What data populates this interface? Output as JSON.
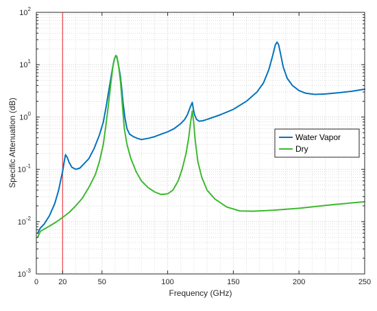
{
  "chart_data": {
    "type": "line",
    "title": "",
    "xlabel": "Frequency (GHz)",
    "ylabel": "Specific Attenuation (dB)",
    "xlim": [
      0,
      250
    ],
    "ylim": [
      0.001,
      100
    ],
    "yscale": "log",
    "grid": true,
    "legend_position": "right",
    "x_ticks": [
      "0",
      "50",
      "100",
      "150",
      "200",
      "250"
    ],
    "x_extra_tick": "20",
    "y_ticks": [
      {
        "base": "10",
        "exp": "-3",
        "value": 0.001
      },
      {
        "base": "10",
        "exp": "-2",
        "value": 0.01
      },
      {
        "base": "10",
        "exp": "-1",
        "value": 0.1
      },
      {
        "base": "10",
        "exp": "0",
        "value": 1
      },
      {
        "base": "10",
        "exp": "1",
        "value": 10
      },
      {
        "base": "10",
        "exp": "2",
        "value": 100
      }
    ],
    "vertical_line": {
      "x": 20,
      "color": "#e8202a"
    },
    "series": [
      {
        "name": "Water Vapor",
        "color": "#0072bd",
        "points": [
          [
            1,
            0.006
          ],
          [
            3,
            0.0075
          ],
          [
            6,
            0.009
          ],
          [
            10,
            0.013
          ],
          [
            14,
            0.022
          ],
          [
            17,
            0.04
          ],
          [
            19,
            0.07
          ],
          [
            20,
            0.09
          ],
          [
            21,
            0.13
          ],
          [
            22.2,
            0.19
          ],
          [
            23.5,
            0.17
          ],
          [
            25,
            0.135
          ],
          [
            27,
            0.11
          ],
          [
            30,
            0.1
          ],
          [
            33,
            0.105
          ],
          [
            36,
            0.125
          ],
          [
            40,
            0.16
          ],
          [
            44,
            0.25
          ],
          [
            48,
            0.45
          ],
          [
            51,
            0.8
          ],
          [
            53,
            1.5
          ],
          [
            55,
            3
          ],
          [
            57,
            6
          ],
          [
            58.5,
            10
          ],
          [
            59.5,
            13
          ],
          [
            60.5,
            14.5
          ],
          [
            61.3,
            14
          ],
          [
            62.5,
            10
          ],
          [
            64,
            6
          ],
          [
            65,
            3.5
          ],
          [
            66,
            1.9
          ],
          [
            67.5,
            0.95
          ],
          [
            69,
            0.6
          ],
          [
            71,
            0.47
          ],
          [
            74,
            0.42
          ],
          [
            77,
            0.39
          ],
          [
            80,
            0.37
          ],
          [
            85,
            0.39
          ],
          [
            90,
            0.42
          ],
          [
            95,
            0.47
          ],
          [
            100,
            0.52
          ],
          [
            105,
            0.6
          ],
          [
            110,
            0.75
          ],
          [
            113,
            0.9
          ],
          [
            115,
            1.1
          ],
          [
            117,
            1.5
          ],
          [
            118.75,
            1.9
          ],
          [
            119.6,
            1.4
          ],
          [
            120.5,
            1.1
          ],
          [
            122,
            0.9
          ],
          [
            124,
            0.83
          ],
          [
            127,
            0.85
          ],
          [
            130,
            0.9
          ],
          [
            140,
            1.1
          ],
          [
            150,
            1.4
          ],
          [
            160,
            2
          ],
          [
            168,
            3
          ],
          [
            173,
            4.5
          ],
          [
            177,
            8
          ],
          [
            180,
            15
          ],
          [
            182,
            24
          ],
          [
            183.3,
            27
          ],
          [
            184.5,
            24
          ],
          [
            186,
            16
          ],
          [
            188,
            9
          ],
          [
            191,
            5.5
          ],
          [
            195,
            4
          ],
          [
            200,
            3.2
          ],
          [
            205,
            2.85
          ],
          [
            212,
            2.7
          ],
          [
            220,
            2.75
          ],
          [
            230,
            2.9
          ],
          [
            240,
            3.1
          ],
          [
            250,
            3.4
          ]
        ]
      },
      {
        "name": "Dry",
        "color": "#3cb82e",
        "points": [
          [
            1,
            0.005
          ],
          [
            3,
            0.0065
          ],
          [
            6,
            0.0072
          ],
          [
            10,
            0.0082
          ],
          [
            15,
            0.0098
          ],
          [
            20,
            0.012
          ],
          [
            25,
            0.015
          ],
          [
            30,
            0.02
          ],
          [
            35,
            0.028
          ],
          [
            40,
            0.045
          ],
          [
            45,
            0.08
          ],
          [
            48,
            0.14
          ],
          [
            51,
            0.3
          ],
          [
            53,
            0.7
          ],
          [
            55,
            1.8
          ],
          [
            57,
            5
          ],
          [
            58.5,
            10
          ],
          [
            59.5,
            13
          ],
          [
            60.5,
            15
          ],
          [
            61.3,
            14.5
          ],
          [
            62.5,
            10
          ],
          [
            64,
            5
          ],
          [
            65,
            2.5
          ],
          [
            66,
            1.2
          ],
          [
            67,
            0.6
          ],
          [
            69,
            0.3
          ],
          [
            72,
            0.16
          ],
          [
            76,
            0.09
          ],
          [
            80,
            0.06
          ],
          [
            85,
            0.045
          ],
          [
            90,
            0.037
          ],
          [
            95,
            0.033
          ],
          [
            100,
            0.034
          ],
          [
            104,
            0.04
          ],
          [
            108,
            0.06
          ],
          [
            111,
            0.1
          ],
          [
            114,
            0.2
          ],
          [
            116,
            0.4
          ],
          [
            117.5,
            0.8
          ],
          [
            118.75,
            1.3
          ],
          [
            119.8,
            0.8
          ],
          [
            121,
            0.35
          ],
          [
            123,
            0.14
          ],
          [
            126,
            0.07
          ],
          [
            130,
            0.04
          ],
          [
            136,
            0.027
          ],
          [
            145,
            0.019
          ],
          [
            155,
            0.016
          ],
          [
            165,
            0.0158
          ],
          [
            180,
            0.0165
          ],
          [
            200,
            0.018
          ],
          [
            225,
            0.021
          ],
          [
            250,
            0.024
          ]
        ]
      }
    ]
  }
}
